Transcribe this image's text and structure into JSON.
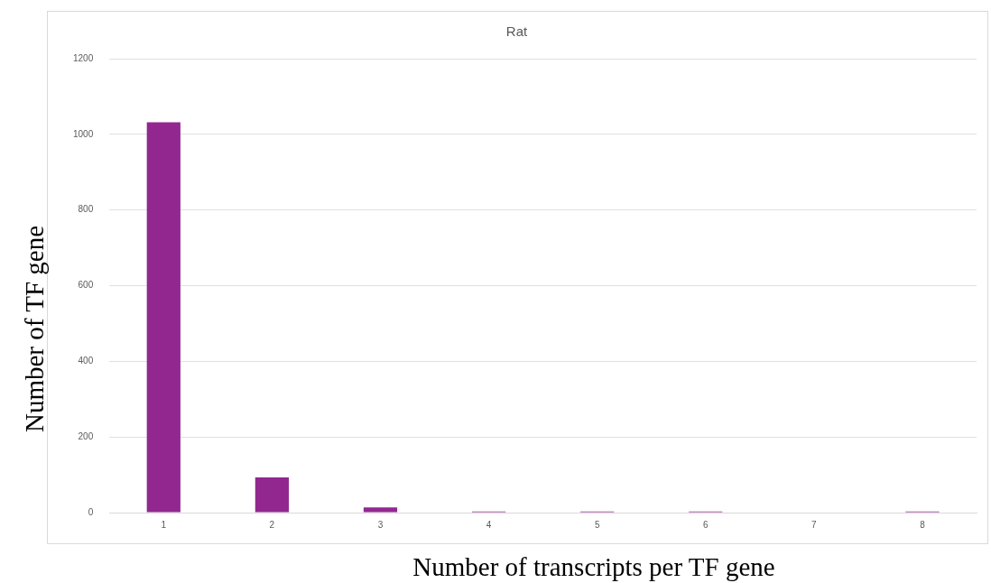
{
  "chart_data": {
    "type": "bar",
    "title": "Rat",
    "xlabel": "Number of transcripts per TF gene",
    "ylabel": "Number of TF gene",
    "categories": [
      "1",
      "2",
      "3",
      "4",
      "5",
      "6",
      "7",
      "8"
    ],
    "values": [
      1032,
      93,
      14,
      3,
      3,
      3,
      0,
      3
    ],
    "color": "#92278f",
    "ylim": [
      0,
      1200
    ],
    "yticks": [
      0,
      200,
      400,
      600,
      800,
      1000,
      1200
    ],
    "grid": "y",
    "legend": false
  }
}
